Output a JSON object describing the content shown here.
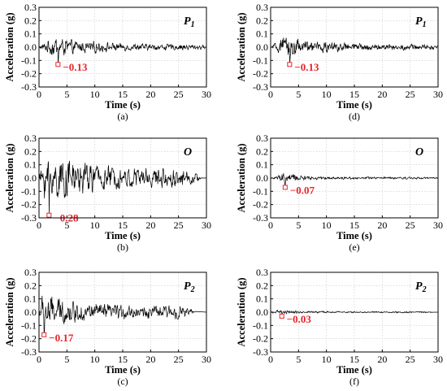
{
  "chart_data": [
    {
      "type": "line",
      "panel": "(a)",
      "location": "P",
      "location_sub": "1",
      "xlabel": "Time (s)",
      "ylabel": "Acceleration (g)",
      "xlim": [
        0,
        30
      ],
      "ylim": [
        -0.3,
        0.3
      ],
      "xticks": [
        "0",
        "5",
        "10",
        "15",
        "20",
        "25",
        "30"
      ],
      "yticks": [
        "0.3",
        "0.2",
        "0.1",
        "0.0",
        "-0.1",
        "-0.2",
        "-0.3"
      ],
      "grid": true,
      "duration": 30,
      "decay": 0.35,
      "peak": {
        "x": 3.4,
        "y": -0.13,
        "label": "−0.13"
      },
      "envelope": [
        [
          0,
          0.005
        ],
        [
          1,
          0.03
        ],
        [
          2,
          0.06
        ],
        [
          3,
          0.065
        ],
        [
          4,
          0.06
        ],
        [
          5,
          0.06
        ],
        [
          6,
          0.045
        ],
        [
          8,
          0.035
        ],
        [
          10,
          0.04
        ],
        [
          11,
          0.03
        ],
        [
          15,
          0.025
        ],
        [
          20,
          0.02
        ],
        [
          25,
          0.02
        ],
        [
          28,
          0.018
        ],
        [
          30,
          0.01
        ]
      ],
      "color": "#000000",
      "peak_color": "#e8232a"
    },
    {
      "type": "line",
      "panel": "(b)",
      "location": "O",
      "location_sub": "",
      "xlabel": "Time (s)",
      "ylabel": "Acceleration (g)",
      "xlim": [
        0,
        30
      ],
      "ylim": [
        -0.3,
        0.3
      ],
      "xticks": [
        "0",
        "5",
        "10",
        "15",
        "20",
        "25",
        "30"
      ],
      "yticks": [
        "0.3",
        "0.2",
        "0.1",
        "0.0",
        "-0.1",
        "-0.2",
        "-0.3"
      ],
      "grid": true,
      "duration": 29,
      "decay": 0.45,
      "peak": {
        "x": 1.8,
        "y": -0.28,
        "label": "−0.28"
      },
      "envelope": [
        [
          0,
          0.01
        ],
        [
          0.5,
          0.08
        ],
        [
          1,
          0.13
        ],
        [
          2,
          0.14
        ],
        [
          3,
          0.14
        ],
        [
          4,
          0.13
        ],
        [
          5,
          0.12
        ],
        [
          7,
          0.1
        ],
        [
          10,
          0.09
        ],
        [
          15,
          0.07
        ],
        [
          20,
          0.065
        ],
        [
          24,
          0.06
        ],
        [
          26,
          0.05
        ],
        [
          28,
          0.03
        ],
        [
          29,
          0.01
        ]
      ],
      "color": "#000000",
      "peak_color": "#e8232a"
    },
    {
      "type": "line",
      "panel": "(c)",
      "location": "P",
      "location_sub": "2",
      "xlabel": "Time (s)",
      "ylabel": "Acceleration (g)",
      "xlim": [
        0,
        30
      ],
      "ylim": [
        -0.3,
        0.3
      ],
      "xticks": [
        "0",
        "5",
        "10",
        "15",
        "20",
        "25",
        "30"
      ],
      "yticks": [
        "0.3",
        "0.2",
        "0.1",
        "0.0",
        "-0.1",
        "-0.2",
        "-0.3"
      ],
      "grid": true,
      "duration": 28,
      "decay": 0.4,
      "peak": {
        "x": 0.9,
        "y": -0.17,
        "label": "−0.17"
      },
      "envelope": [
        [
          0,
          0.01
        ],
        [
          0.5,
          0.1
        ],
        [
          1,
          0.12
        ],
        [
          2,
          0.1
        ],
        [
          3,
          0.09
        ],
        [
          5,
          0.07
        ],
        [
          8,
          0.06
        ],
        [
          12,
          0.05
        ],
        [
          18,
          0.04
        ],
        [
          22,
          0.04
        ],
        [
          25,
          0.045
        ],
        [
          27,
          0.02
        ],
        [
          28,
          0.005
        ]
      ],
      "color": "#000000",
      "peak_color": "#e8232a"
    },
    {
      "type": "line",
      "panel": "(d)",
      "location": "P",
      "location_sub": "1",
      "xlabel": "Time (s)",
      "ylabel": "Acceleration (g)",
      "xlim": [
        0,
        30
      ],
      "ylim": [
        -0.3,
        0.3
      ],
      "xticks": [
        "0",
        "5",
        "10",
        "15",
        "20",
        "25",
        "30"
      ],
      "yticks": [
        "0.3",
        "0.2",
        "0.1",
        "0.0",
        "-0.1",
        "-0.2",
        "-0.3"
      ],
      "grid": true,
      "duration": 30,
      "decay": 0.35,
      "peak": {
        "x": 3.4,
        "y": -0.13,
        "label": "−0.13"
      },
      "envelope": [
        [
          0,
          0.005
        ],
        [
          1,
          0.03
        ],
        [
          2,
          0.06
        ],
        [
          3,
          0.065
        ],
        [
          4,
          0.06
        ],
        [
          5,
          0.06
        ],
        [
          6,
          0.045
        ],
        [
          8,
          0.035
        ],
        [
          10,
          0.04
        ],
        [
          11,
          0.03
        ],
        [
          15,
          0.025
        ],
        [
          20,
          0.02
        ],
        [
          25,
          0.02
        ],
        [
          28,
          0.018
        ],
        [
          30,
          0.01
        ]
      ],
      "color": "#000000",
      "peak_color": "#e8232a"
    },
    {
      "type": "line",
      "panel": "(e)",
      "location": "O",
      "location_sub": "",
      "xlabel": "Time (s)",
      "ylabel": "Acceleration (g)",
      "xlim": [
        0,
        30
      ],
      "ylim": [
        -0.3,
        0.3
      ],
      "xticks": [
        "0",
        "5",
        "10",
        "15",
        "20",
        "25",
        "30"
      ],
      "yticks": [
        "0.3",
        "0.2",
        "0.1",
        "0.0",
        "-0.1",
        "-0.2",
        "-0.3"
      ],
      "grid": true,
      "duration": 30,
      "decay": 0.3,
      "peak": {
        "x": 2.6,
        "y": -0.07,
        "label": "−0.07"
      },
      "envelope": [
        [
          0,
          0.003
        ],
        [
          1,
          0.01
        ],
        [
          2,
          0.03
        ],
        [
          3,
          0.03
        ],
        [
          4,
          0.025
        ],
        [
          5,
          0.02
        ],
        [
          7,
          0.012
        ],
        [
          10,
          0.01
        ],
        [
          15,
          0.008
        ],
        [
          20,
          0.008
        ],
        [
          25,
          0.007
        ],
        [
          30,
          0.005
        ]
      ],
      "color": "#000000",
      "peak_color": "#e8232a"
    },
    {
      "type": "line",
      "panel": "(f)",
      "location": "P",
      "location_sub": "2",
      "xlabel": "Time (s)",
      "ylabel": "Acceleration (g)",
      "xlim": [
        0,
        30
      ],
      "ylim": [
        -0.3,
        0.3
      ],
      "xticks": [
        "0",
        "5",
        "10",
        "15",
        "20",
        "25",
        "30"
      ],
      "yticks": [
        "0.3",
        "0.2",
        "0.1",
        "0.0",
        "-0.1",
        "-0.2",
        "-0.3"
      ],
      "grid": true,
      "duration": 29,
      "decay": 0.3,
      "peak": {
        "x": 2.0,
        "y": -0.03,
        "label": "−0.03"
      },
      "envelope": [
        [
          0,
          0.003
        ],
        [
          1,
          0.01
        ],
        [
          2,
          0.015
        ],
        [
          3,
          0.012
        ],
        [
          5,
          0.008
        ],
        [
          10,
          0.006
        ],
        [
          15,
          0.005
        ],
        [
          20,
          0.005
        ],
        [
          25,
          0.005
        ],
        [
          29,
          0.004
        ]
      ],
      "color": "#000000",
      "peak_color": "#e8232a"
    }
  ]
}
